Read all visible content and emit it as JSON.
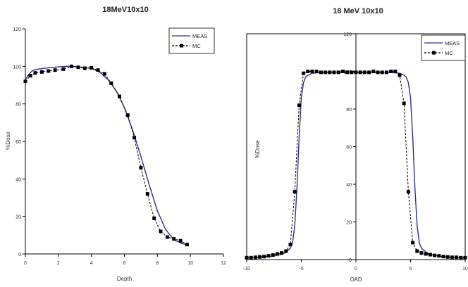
{
  "colors": {
    "meas": "#2e3192",
    "mc": "#000000",
    "axis": "#000000"
  },
  "chart_data": [
    {
      "type": "line",
      "title": "18MeV10x10",
      "xlabel": "Depth",
      "ylabel": "%Dose",
      "xlim": [
        0,
        12
      ],
      "ylim": [
        0,
        120
      ],
      "xticks": [
        0,
        2,
        4,
        6,
        8,
        10,
        12
      ],
      "yticks": [
        0,
        20,
        40,
        60,
        80,
        100,
        120
      ],
      "grid": false,
      "legend_position": "top-right",
      "series": [
        {
          "name": "MEAS",
          "style": "solid",
          "x": [
            0,
            0.2,
            0.4,
            0.6,
            1.0,
            1.5,
            2.0,
            2.5,
            2.8,
            3.2,
            3.6,
            4.0,
            4.5,
            5.0,
            5.5,
            6.0,
            6.5,
            7.0,
            7.5,
            8.0,
            8.5,
            9.0,
            9.5,
            9.8
          ],
          "y": [
            93,
            95.5,
            97.5,
            98.2,
            98.8,
            99.3,
            99.7,
            100,
            100,
            99.7,
            99.4,
            98.8,
            97,
            93,
            87,
            78,
            66,
            52,
            37,
            23,
            13,
            7.5,
            5.5,
            5
          ]
        },
        {
          "name": "MC",
          "style": "dashed",
          "markers": "square",
          "x": [
            0,
            0.3,
            0.6,
            1.0,
            1.4,
            1.8,
            2.3,
            2.8,
            3.2,
            3.6,
            4.0,
            4.4,
            4.8,
            5.2,
            5.7,
            6.2,
            6.6,
            7.0,
            7.4,
            7.8,
            8.2,
            8.6,
            9.0,
            9.4,
            9.8
          ],
          "y": [
            92,
            95,
            96.5,
            97,
            97.5,
            98,
            98.5,
            100,
            99.5,
            99,
            99.2,
            98,
            96,
            91,
            84,
            74,
            62,
            46,
            32,
            19,
            12,
            9,
            8,
            7,
            5
          ]
        }
      ]
    },
    {
      "type": "line",
      "title": "18 MeV 10x10",
      "xlabel": "OAD",
      "ylabel": "%Dose",
      "xlim": [
        -10,
        10
      ],
      "ylim": [
        0,
        120
      ],
      "xticks": [
        -10,
        -5,
        0,
        5,
        10
      ],
      "yticks": [
        0,
        20,
        40,
        60,
        80,
        100,
        120
      ],
      "grid": false,
      "legend_position": "top-right",
      "series": [
        {
          "name": "MEAS",
          "style": "solid",
          "x": [
            -10,
            -8,
            -7,
            -6.5,
            -6,
            -5.8,
            -5.6,
            -5.4,
            -5.2,
            -5.0,
            -4.8,
            -4.6,
            -4.4,
            -4.0,
            -3.0,
            -2.0,
            0,
            2.0,
            3.0,
            4.0,
            4.4,
            4.6,
            4.8,
            5.0,
            5.2,
            5.4,
            5.6,
            5.8,
            6.0,
            6.5,
            7,
            8,
            10
          ],
          "y": [
            0.8,
            1.5,
            2.5,
            3.5,
            6,
            9,
            18,
            38,
            65,
            86,
            94,
            97,
            98,
            99,
            99.5,
            99.5,
            99.5,
            99.5,
            99.5,
            99,
            98,
            97,
            94,
            86,
            65,
            38,
            18,
            9,
            6,
            3.5,
            2.5,
            1.5,
            0.8
          ]
        },
        {
          "name": "MC",
          "style": "dashed",
          "markers": "square",
          "x": [
            -10,
            -9.6,
            -9.2,
            -8.8,
            -8.4,
            -8.0,
            -7.6,
            -7.2,
            -6.8,
            -6.4,
            -6.0,
            -5.6,
            -5.2,
            -4.8,
            -4.4,
            -4.0,
            -3.6,
            -3.2,
            -2.8,
            -2.4,
            -2.0,
            -1.6,
            -1.2,
            -0.8,
            -0.4,
            0,
            0.4,
            0.8,
            1.2,
            1.6,
            2.0,
            2.4,
            2.8,
            3.2,
            3.6,
            4.0,
            4.4,
            4.8,
            5.2,
            5.6,
            6.0,
            6.4,
            6.8,
            7.2,
            7.6,
            8.0,
            8.4,
            8.8,
            9.2,
            9.6,
            10
          ],
          "y": [
            1,
            1,
            1.2,
            1.4,
            1.6,
            2,
            2.4,
            3,
            3.5,
            4.5,
            8,
            36,
            82,
            99,
            100,
            100,
            100,
            99.5,
            99.5,
            99.5,
            99.5,
            99.5,
            100,
            99.5,
            99.5,
            99.5,
            99.5,
            99.5,
            99.5,
            100,
            99.5,
            99.5,
            99.5,
            100,
            100,
            98,
            83,
            36,
            9,
            4.5,
            3.5,
            3,
            2.6,
            2.2,
            2,
            1.6,
            1.4,
            1.2,
            1.2,
            1,
            1
          ]
        }
      ]
    }
  ]
}
